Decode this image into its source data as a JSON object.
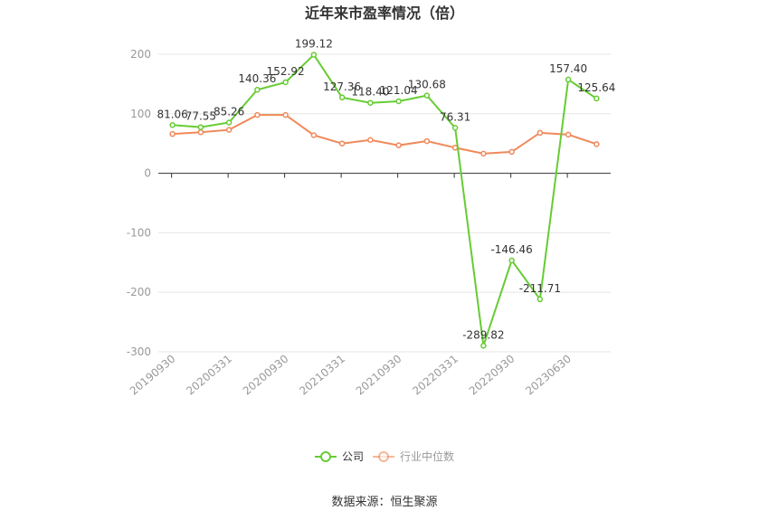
{
  "chart_data": {
    "type": "line",
    "title": "近年来市盈率情况（倍）",
    "xlabel": "",
    "ylabel": "",
    "ylim": [
      -300,
      200
    ],
    "yticks": [
      "200",
      "100",
      "0",
      "-100",
      "-200",
      "-300"
    ],
    "xtick_labels": [
      "20190930",
      "20200331",
      "20200930",
      "20210331",
      "20210930",
      "20220331",
      "20220930",
      "20230630"
    ],
    "grid": true,
    "legend_position": "bottom",
    "colors": {
      "company": "#66cc33",
      "industry": "#f0895a",
      "grid": "#e6e6e6",
      "axis": "#333333"
    },
    "series": [
      {
        "name": "公司",
        "values": [
          81.06,
          77.55,
          85.26,
          140.36,
          152.92,
          199.12,
          127.36,
          118.4,
          121.04,
          130.68,
          76.31,
          -289.82,
          -146.46,
          -211.71,
          157.4,
          125.64
        ],
        "labels": [
          "81.06",
          "77.55",
          "85.26",
          "140.36",
          "152.92",
          "199.12",
          "127.36",
          "118.40",
          "121.04",
          "130.68",
          "76.31",
          "-289.82",
          "-146.46",
          "-211.71",
          "157.40",
          "125.64"
        ]
      },
      {
        "name": "行业中位数",
        "values": [
          66,
          69,
          73,
          98,
          98,
          64,
          50,
          56,
          47,
          54,
          43,
          33,
          36,
          68,
          65,
          49
        ]
      }
    ]
  },
  "footer": {
    "source": "数据来源：恒生聚源"
  }
}
